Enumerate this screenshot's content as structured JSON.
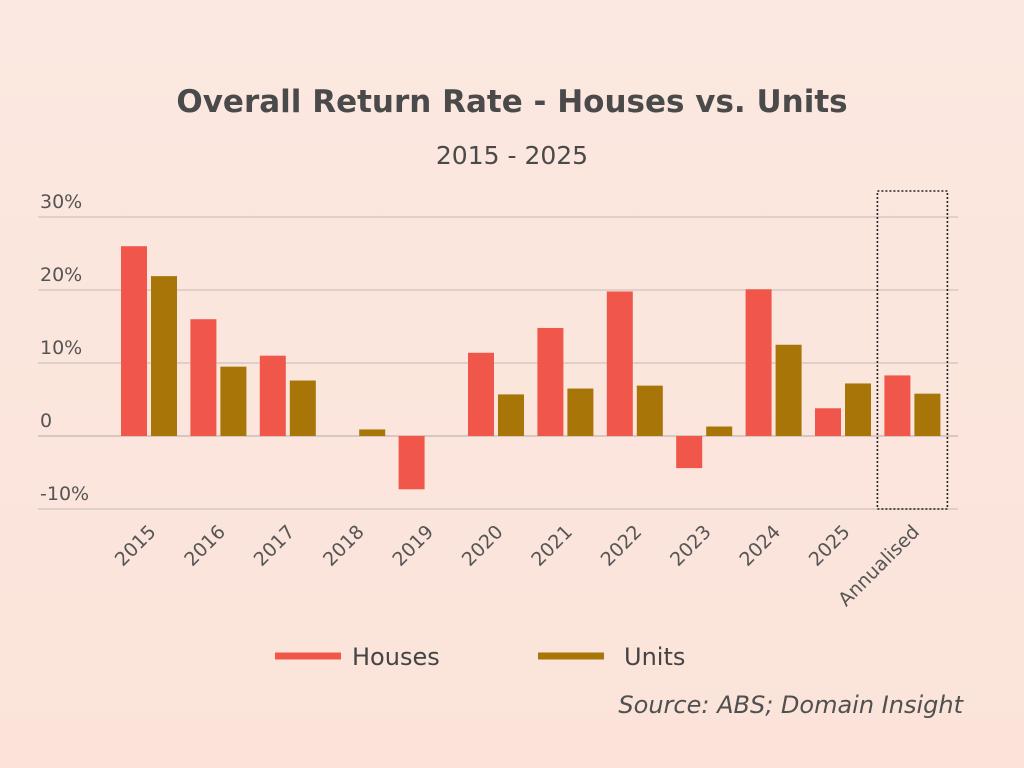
{
  "chart_data": {
    "type": "bar",
    "title": "Overall Return Rate - Houses vs. Units",
    "subtitle": "2015 - 2025",
    "xlabel": "",
    "ylabel": "",
    "categories": [
      "2015",
      "2016",
      "2017",
      "2018",
      "2019",
      "2020",
      "2021",
      "2022",
      "2023",
      "2024",
      "2025",
      "Annualised"
    ],
    "series": [
      {
        "name": "Houses",
        "color": "#f0574a",
        "values": [
          26.0,
          16.0,
          11.0,
          0.0,
          -7.3,
          11.4,
          14.8,
          19.8,
          -4.4,
          20.1,
          3.8,
          8.3
        ]
      },
      {
        "name": "Units",
        "color": "#a87608",
        "values": [
          21.9,
          9.5,
          7.6,
          0.9,
          0.0,
          5.7,
          6.5,
          6.9,
          1.3,
          12.5,
          7.2,
          5.8
        ]
      }
    ],
    "ylim": [
      -10,
      30
    ],
    "yticks": [
      {
        "value": 30,
        "label": "30%"
      },
      {
        "value": 20,
        "label": "20%"
      },
      {
        "value": 10,
        "label": "10%"
      },
      {
        "value": 0,
        "label": "0"
      },
      {
        "value": -10,
        "label": "-10%"
      }
    ],
    "grid": true,
    "legend": "bottom-center",
    "highlight_category": "Annualised",
    "source": "Source: ABS; Domain Insight"
  }
}
